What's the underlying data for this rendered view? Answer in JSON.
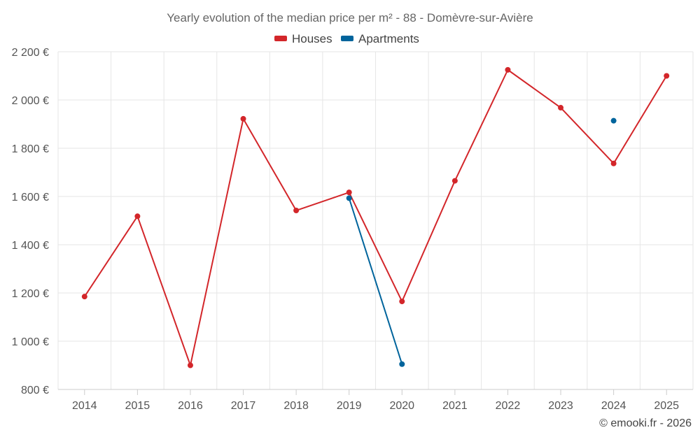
{
  "chart_data": {
    "type": "line",
    "title": "Yearly evolution of the median price per m² - 88 - Domèvre-sur-Avière",
    "categories": [
      "2014",
      "2015",
      "2016",
      "2017",
      "2018",
      "2019",
      "2020",
      "2021",
      "2022",
      "2023",
      "2024",
      "2025"
    ],
    "series": [
      {
        "name": "Houses",
        "color": "#d3262a",
        "values": [
          1185,
          1518,
          900,
          1922,
          1542,
          1617,
          1165,
          1665,
          2125,
          1968,
          1737,
          2100
        ]
      },
      {
        "name": "Apartments",
        "color": "#00649c",
        "values": [
          null,
          null,
          null,
          null,
          null,
          1593,
          905,
          null,
          null,
          null,
          1914,
          null
        ]
      }
    ],
    "ylim": [
      800,
      2200
    ],
    "yticks": [
      800,
      1000,
      1200,
      1400,
      1600,
      1800,
      2000,
      2200
    ],
    "ytick_labels": [
      "800 €",
      "1 000 €",
      "1 200 €",
      "1 400 €",
      "1 600 €",
      "1 800 €",
      "2 000 €",
      "2 200 €"
    ],
    "xlabel": "",
    "ylabel": "",
    "grid": true,
    "legend": "top-center"
  },
  "credit": "© emooki.fr - 2026"
}
